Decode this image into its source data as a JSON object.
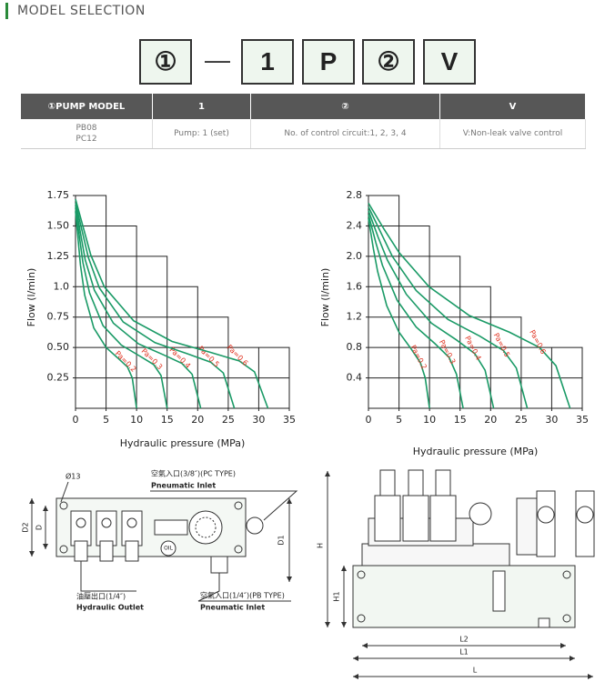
{
  "header": {
    "title": "MODEL SELECTION"
  },
  "code": {
    "parts": [
      "①",
      "—",
      "1",
      "P",
      "②",
      "V"
    ]
  },
  "table": {
    "header": [
      "①PUMP MODEL",
      "1",
      "②",
      "V"
    ],
    "rows": [
      [
        [
          "PB08",
          "PC12"
        ],
        "Pump: 1 (set)",
        "No. of control circuit:1, 2, 3, 4",
        "V:Non-leak valve control"
      ]
    ]
  },
  "chart_data": [
    {
      "type": "line",
      "xlabel": "Hydraulic pressure (MPa)",
      "ylabel": "Flow (l/min)",
      "xlim": [
        0,
        35
      ],
      "ylim": [
        0,
        1.75
      ],
      "xticks": [
        0,
        5,
        10,
        15,
        20,
        25,
        30,
        35
      ],
      "yticks": [
        {
          "value": 0.25,
          "label": "0.25"
        },
        {
          "value": 0.5,
          "label": "0.50"
        },
        0.75,
        {
          "value": 1,
          "label": "1.0"
        },
        1.25,
        {
          "value": 1.5,
          "label": "1.50"
        },
        1.75
      ],
      "label_color": "#e0301e",
      "series": [
        {
          "name": "Pa=0.2",
          "color": "#1a9a66",
          "x": [
            0,
            0.8,
            1.5,
            3,
            5,
            7,
            8.5,
            9.3,
            10
          ],
          "values": [
            1.62,
            1.18,
            0.93,
            0.66,
            0.5,
            0.41,
            0.34,
            0.25,
            0
          ]
        },
        {
          "name": "Pa=0.3",
          "color": "#1a9a66",
          "x": [
            0,
            1.2,
            2.3,
            4.5,
            7.5,
            10.5,
            12.8,
            14,
            15
          ],
          "values": [
            1.65,
            1.2,
            0.95,
            0.68,
            0.52,
            0.43,
            0.36,
            0.27,
            0
          ]
        },
        {
          "name": "Pa=0.4",
          "color": "#1a9a66",
          "x": [
            0,
            1.6,
            3.1,
            6.2,
            10.3,
            14.4,
            17.4,
            19.1,
            20.5
          ],
          "values": [
            1.67,
            1.22,
            0.97,
            0.7,
            0.53,
            0.44,
            0.37,
            0.28,
            0
          ]
        },
        {
          "name": "Pa=0.5",
          "color": "#1a9a66",
          "x": [
            0,
            2.1,
            3.9,
            7.8,
            13,
            18.2,
            22.1,
            24.2,
            26
          ],
          "values": [
            1.69,
            1.24,
            0.99,
            0.71,
            0.54,
            0.45,
            0.38,
            0.29,
            0
          ]
        },
        {
          "name": "Pa=0.6",
          "color": "#1a9a66",
          "x": [
            0,
            2.5,
            4.7,
            9.5,
            15.8,
            22.1,
            26.8,
            29.3,
            31.5
          ],
          "values": [
            1.72,
            1.26,
            1.0,
            0.72,
            0.55,
            0.46,
            0.39,
            0.3,
            0
          ]
        }
      ]
    },
    {
      "type": "line",
      "xlabel": "Hydraulic pressure (MPa)",
      "ylabel": "Flow (l/min)",
      "xlim": [
        0,
        35
      ],
      "ylim": [
        0,
        2.8
      ],
      "xticks": [
        0,
        5,
        10,
        15,
        20,
        25,
        30,
        35
      ],
      "yticks": [
        0.4,
        0.8,
        1.2,
        1.6,
        {
          "value": 2,
          "label": "2.0"
        },
        2.4,
        2.8
      ],
      "label_color": "#e0301e",
      "series": [
        {
          "name": "Pa=0.2",
          "color": "#1a9a66",
          "x": [
            0,
            0.8,
            1.5,
            3,
            5,
            7,
            8.5,
            9.3,
            10
          ],
          "values": [
            2.5,
            2.1,
            1.8,
            1.35,
            1.0,
            0.78,
            0.6,
            0.4,
            0
          ]
        },
        {
          "name": "Pa=0.3",
          "color": "#1a9a66",
          "x": [
            0,
            1.2,
            2.3,
            4.7,
            7.8,
            10.9,
            13.2,
            14.4,
            15.5
          ],
          "values": [
            2.55,
            2.18,
            1.88,
            1.42,
            1.07,
            0.85,
            0.67,
            0.45,
            0
          ]
        },
        {
          "name": "Pa=0.4",
          "color": "#1a9a66",
          "x": [
            0,
            1.6,
            3.1,
            6.2,
            10.3,
            14.4,
            17.4,
            19.1,
            20.5
          ],
          "values": [
            2.6,
            2.25,
            1.95,
            1.5,
            1.12,
            0.9,
            0.72,
            0.5,
            0
          ]
        },
        {
          "name": "Pa=0.5",
          "color": "#1a9a66",
          "x": [
            0,
            2.1,
            3.9,
            7.8,
            13,
            18.2,
            22.1,
            24.2,
            26
          ],
          "values": [
            2.65,
            2.3,
            2.0,
            1.55,
            1.17,
            0.95,
            0.76,
            0.53,
            0
          ]
        },
        {
          "name": "Pa=0.6",
          "color": "#1a9a66",
          "x": [
            0,
            2.6,
            5,
            9.9,
            16.5,
            23.1,
            28,
            30.7,
            33
          ],
          "values": [
            2.7,
            2.35,
            2.05,
            1.6,
            1.22,
            1.0,
            0.8,
            0.56,
            0
          ]
        }
      ]
    }
  ],
  "drawings": {
    "left": {
      "hole": "Ø13",
      "pc_inlet": "空氣入口(3/8″)(PC TYPE)",
      "pc_inlet_en": "Pneumatic Inlet",
      "d2": "D2",
      "d": "D",
      "d1": "D1",
      "oil": "OIL",
      "outlet": "油壓出口(1/4″)",
      "outlet_en": "Hydraulic Outlet",
      "pb_inlet": "空氣入口(1/4″)(PB TYPE)",
      "pb_inlet_en": "Pneumatic Inlet"
    },
    "right": {
      "h": "H",
      "h1": "H1",
      "l2": "L2",
      "l1": "L1",
      "l": "L"
    }
  }
}
